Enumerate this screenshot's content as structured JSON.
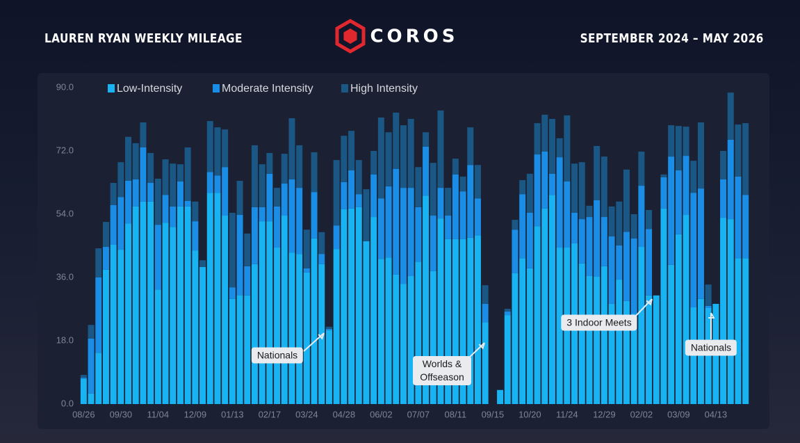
{
  "header": {
    "title": "LAUREN RYAN WEEKLY MILEAGE",
    "brand": "COROS",
    "date_range": "SEPTEMBER 2024 – MAY 2026"
  },
  "chart_data": {
    "type": "stacked_bar",
    "categories": [
      "08/26",
      null,
      null,
      null,
      null,
      "09/30",
      null,
      null,
      null,
      null,
      "11/04",
      null,
      null,
      null,
      null,
      "12/09",
      null,
      null,
      null,
      null,
      "01/13",
      null,
      null,
      null,
      null,
      "02/17",
      null,
      null,
      null,
      null,
      "03/24",
      null,
      null,
      null,
      null,
      "04/28",
      null,
      null,
      null,
      null,
      "06/02",
      null,
      null,
      null,
      null,
      "07/07",
      null,
      null,
      null,
      null,
      "08/11",
      null,
      null,
      null,
      null,
      "09/15",
      null,
      null,
      null,
      null,
      "10/20",
      null,
      null,
      null,
      null,
      "11/24",
      null,
      null,
      null,
      null,
      "12/29",
      null,
      null,
      null,
      null,
      "02/02",
      null,
      null,
      null,
      null,
      "03/09",
      null,
      null,
      null,
      null,
      "04/13",
      null,
      null,
      null,
      null
    ],
    "series": [
      {
        "name": "Low-Intensity",
        "color": "#17b3f2",
        "values": [
          7.2,
          3.0,
          14.6,
          38.2,
          45.3,
          43.9,
          51.4,
          56.2,
          57.6,
          57.6,
          32.6,
          51.6,
          50.4,
          56.2,
          56.2,
          43.7,
          39.0,
          60.1,
          60.1,
          53.6,
          29.9,
          31.0,
          30.9,
          39.8,
          52.0,
          52.0,
          44.5,
          53.6,
          43.1,
          42.7,
          37.4,
          47.1,
          39.8,
          21.0,
          44.1,
          55.4,
          55.6,
          56.0,
          46.3,
          53.2,
          41.3,
          41.7,
          36.8,
          34.2,
          36.4,
          40.5,
          59.3,
          37.8,
          52.8,
          46.9,
          46.9,
          46.9,
          47.3,
          48.0,
          23.3,
          0,
          4.0,
          25.3,
          37.2,
          41.5,
          38.6,
          50.6,
          55.6,
          59.5,
          44.5,
          44.5,
          45.7,
          40.0,
          36.4,
          36.2,
          39.2,
          28.5,
          35.4,
          29.3,
          25.7,
          44.7,
          30.9,
          30.9,
          55.6,
          39.6,
          48.3,
          53.8,
          27.5,
          29.9,
          27.3,
          28.5,
          53.0,
          52.6,
          41.5,
          41.5
        ]
      },
      {
        "name": "Moderate Intensity",
        "color": "#1a8de6",
        "values": [
          0.3,
          15.6,
          21.4,
          6.5,
          11.3,
          15.0,
          12.1,
          7.7,
          15.4,
          5.3,
          18.4,
          7.9,
          5.8,
          7.1,
          1.6,
          8.3,
          0,
          5.9,
          4.9,
          13.8,
          3.3,
          22.8,
          8.3,
          16.2,
          4.0,
          13.5,
          11.7,
          9.1,
          20.8,
          18.8,
          1.2,
          13.2,
          2.9,
          0.4,
          6.7,
          7.7,
          10.9,
          3.7,
          0,
          12.1,
          17.2,
          20.2,
          30.1,
          27.3,
          25.1,
          15.5,
          13.9,
          15.8,
          8.7,
          6.7,
          18.4,
          13.6,
          20.7,
          10.5,
          5.2,
          0,
          0,
          1.0,
          12.4,
          18.2,
          15.8,
          20.4,
          16.2,
          6.0,
          25.7,
          18.8,
          8.7,
          12.6,
          16.8,
          21.8,
          14.0,
          19.2,
          9.7,
          19.7,
          21.4,
          17.4,
          18.9,
          0,
          8.9,
          30.8,
          18.2,
          16.8,
          32.6,
          31.4,
          0.6,
          0,
          10.9,
          22.6,
          23.2,
          18.0
        ]
      },
      {
        "name": "High Intensity",
        "color": "#1b5784",
        "values": [
          0.8,
          3.9,
          8.3,
          7.1,
          6.3,
          9.9,
          12.5,
          10.3,
          7.1,
          8.5,
          13.1,
          10.1,
          12.2,
          4.9,
          15.2,
          5.6,
          1.9,
          14.5,
          13.7,
          10.7,
          21.2,
          9.7,
          9.3,
          17.6,
          12.2,
          5.9,
          5.3,
          8.5,
          17.4,
          12.1,
          11.0,
          11.3,
          6.2,
          0.6,
          18.6,
          13.2,
          11.2,
          9.7,
          14.8,
          6.7,
          23.0,
          15.4,
          16.0,
          17.8,
          19.6,
          11.4,
          4.1,
          15.0,
          22.0,
          7.9,
          4.5,
          4.2,
          10.7,
          9.5,
          5.3,
          0,
          0,
          0.8,
          2.8,
          4.0,
          11.1,
          8.9,
          10.5,
          15.6,
          5.4,
          18.8,
          14.0,
          16.2,
          3.2,
          15.4,
          17.2,
          8.5,
          12.5,
          17.7,
          6.9,
          9.7,
          5.4,
          0,
          0.8,
          8.9,
          12.6,
          8.3,
          9.1,
          18.8,
          6.1,
          0,
          8.1,
          13.4,
          14.8,
          20.4
        ]
      }
    ],
    "ylim": [
      0,
      90
    ],
    "yticks": [
      {
        "value": 0,
        "label": "0.0"
      },
      {
        "value": 18,
        "label": "18.0"
      },
      {
        "value": 36,
        "label": "36.0"
      },
      {
        "value": 54,
        "label": "54.0"
      },
      {
        "value": 72,
        "label": "72.0"
      },
      {
        "value": 90,
        "label": "90.0"
      }
    ],
    "grid": false,
    "legend": "top",
    "annotations": [
      "Nationals",
      "Worlds & Offseason",
      "3 Indoor Meets",
      "Nationals"
    ]
  }
}
